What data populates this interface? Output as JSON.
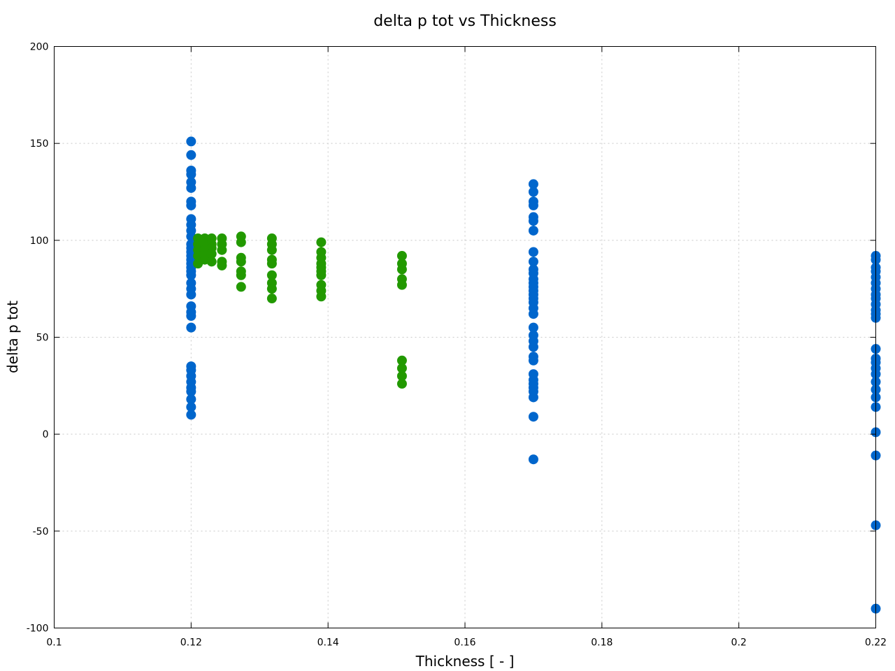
{
  "chart_data": {
    "type": "scatter",
    "title": "delta p tot vs Thickness",
    "xlabel": "Thickness [ - ]",
    "ylabel": "delta p tot",
    "xlim": [
      0.1,
      0.22
    ],
    "ylim": [
      -100,
      200
    ],
    "xticks": [
      "0.1",
      "0.12",
      "0.14",
      "0.16",
      "0.18",
      "0.2",
      "0.22"
    ],
    "yticks": [
      "-100",
      "-50",
      "0",
      "50",
      "100",
      "150",
      "200"
    ],
    "grid": true,
    "series": [
      {
        "color": "#0066cc",
        "points": [
          [
            0.12,
            151
          ],
          [
            0.12,
            144
          ],
          [
            0.12,
            136
          ],
          [
            0.12,
            134
          ],
          [
            0.12,
            130
          ],
          [
            0.12,
            127
          ],
          [
            0.12,
            120
          ],
          [
            0.12,
            118
          ],
          [
            0.12,
            111
          ],
          [
            0.12,
            108
          ],
          [
            0.12,
            105
          ],
          [
            0.12,
            102
          ],
          [
            0.12,
            98
          ],
          [
            0.12,
            96
          ],
          [
            0.12,
            94
          ],
          [
            0.12,
            92
          ],
          [
            0.12,
            90
          ],
          [
            0.12,
            88
          ],
          [
            0.12,
            86
          ],
          [
            0.12,
            84
          ],
          [
            0.12,
            82
          ],
          [
            0.12,
            78
          ],
          [
            0.12,
            75
          ],
          [
            0.12,
            72
          ],
          [
            0.12,
            66
          ],
          [
            0.12,
            63
          ],
          [
            0.12,
            61
          ],
          [
            0.12,
            55
          ],
          [
            0.12,
            35
          ],
          [
            0.12,
            33
          ],
          [
            0.12,
            30
          ],
          [
            0.12,
            27
          ],
          [
            0.12,
            24
          ],
          [
            0.12,
            22
          ],
          [
            0.12,
            18
          ],
          [
            0.12,
            14
          ],
          [
            0.12,
            10
          ],
          [
            0.17,
            129
          ],
          [
            0.17,
            125
          ],
          [
            0.17,
            120
          ],
          [
            0.17,
            118
          ],
          [
            0.17,
            112
          ],
          [
            0.17,
            110
          ],
          [
            0.17,
            105
          ],
          [
            0.17,
            94
          ],
          [
            0.17,
            89
          ],
          [
            0.17,
            85
          ],
          [
            0.17,
            83
          ],
          [
            0.17,
            80
          ],
          [
            0.17,
            78
          ],
          [
            0.17,
            76
          ],
          [
            0.17,
            74
          ],
          [
            0.17,
            72
          ],
          [
            0.17,
            70
          ],
          [
            0.17,
            68
          ],
          [
            0.17,
            65
          ],
          [
            0.17,
            62
          ],
          [
            0.17,
            55
          ],
          [
            0.17,
            51
          ],
          [
            0.17,
            48
          ],
          [
            0.17,
            45
          ],
          [
            0.17,
            40
          ],
          [
            0.17,
            38
          ],
          [
            0.17,
            31
          ],
          [
            0.17,
            28
          ],
          [
            0.17,
            26
          ],
          [
            0.17,
            24
          ],
          [
            0.17,
            22
          ],
          [
            0.17,
            19
          ],
          [
            0.17,
            9
          ],
          [
            0.17,
            -13
          ],
          [
            0.22,
            92
          ],
          [
            0.22,
            90
          ],
          [
            0.22,
            86
          ],
          [
            0.22,
            84
          ],
          [
            0.22,
            81
          ],
          [
            0.22,
            78
          ],
          [
            0.22,
            75
          ],
          [
            0.22,
            72
          ],
          [
            0.22,
            70
          ],
          [
            0.22,
            67
          ],
          [
            0.22,
            64
          ],
          [
            0.22,
            62
          ],
          [
            0.22,
            60
          ],
          [
            0.22,
            44
          ],
          [
            0.22,
            39
          ],
          [
            0.22,
            37
          ],
          [
            0.22,
            34
          ],
          [
            0.22,
            31
          ],
          [
            0.22,
            27
          ],
          [
            0.22,
            23
          ],
          [
            0.22,
            19
          ],
          [
            0.22,
            14
          ],
          [
            0.22,
            1
          ],
          [
            0.22,
            -11
          ],
          [
            0.22,
            -47
          ],
          [
            0.22,
            -90
          ]
        ]
      },
      {
        "color": "#229900",
        "points": [
          [
            0.121,
            101
          ],
          [
            0.121,
            98
          ],
          [
            0.121,
            95
          ],
          [
            0.121,
            92
          ],
          [
            0.121,
            88
          ],
          [
            0.122,
            101
          ],
          [
            0.122,
            98
          ],
          [
            0.122,
            95
          ],
          [
            0.122,
            92
          ],
          [
            0.122,
            90
          ],
          [
            0.123,
            101
          ],
          [
            0.123,
            98
          ],
          [
            0.123,
            96
          ],
          [
            0.123,
            93
          ],
          [
            0.123,
            89
          ],
          [
            0.1245,
            101
          ],
          [
            0.1245,
            98
          ],
          [
            0.1245,
            95
          ],
          [
            0.1245,
            89
          ],
          [
            0.1245,
            87
          ],
          [
            0.1273,
            102
          ],
          [
            0.1273,
            99
          ],
          [
            0.1273,
            91
          ],
          [
            0.1273,
            89
          ],
          [
            0.1273,
            84
          ],
          [
            0.1273,
            82
          ],
          [
            0.1273,
            76
          ],
          [
            0.1318,
            101
          ],
          [
            0.1318,
            98
          ],
          [
            0.1318,
            95
          ],
          [
            0.1318,
            90
          ],
          [
            0.1318,
            88
          ],
          [
            0.1318,
            82
          ],
          [
            0.1318,
            78
          ],
          [
            0.1318,
            75
          ],
          [
            0.1318,
            70
          ],
          [
            0.139,
            99
          ],
          [
            0.139,
            94
          ],
          [
            0.139,
            91
          ],
          [
            0.139,
            88
          ],
          [
            0.139,
            86
          ],
          [
            0.139,
            84
          ],
          [
            0.139,
            82
          ],
          [
            0.139,
            77
          ],
          [
            0.139,
            74
          ],
          [
            0.139,
            71
          ],
          [
            0.1508,
            92
          ],
          [
            0.1508,
            88
          ],
          [
            0.1508,
            85
          ],
          [
            0.1508,
            80
          ],
          [
            0.1508,
            77
          ],
          [
            0.1508,
            38
          ],
          [
            0.1508,
            34
          ],
          [
            0.1508,
            30
          ],
          [
            0.1508,
            26
          ]
        ]
      }
    ]
  }
}
